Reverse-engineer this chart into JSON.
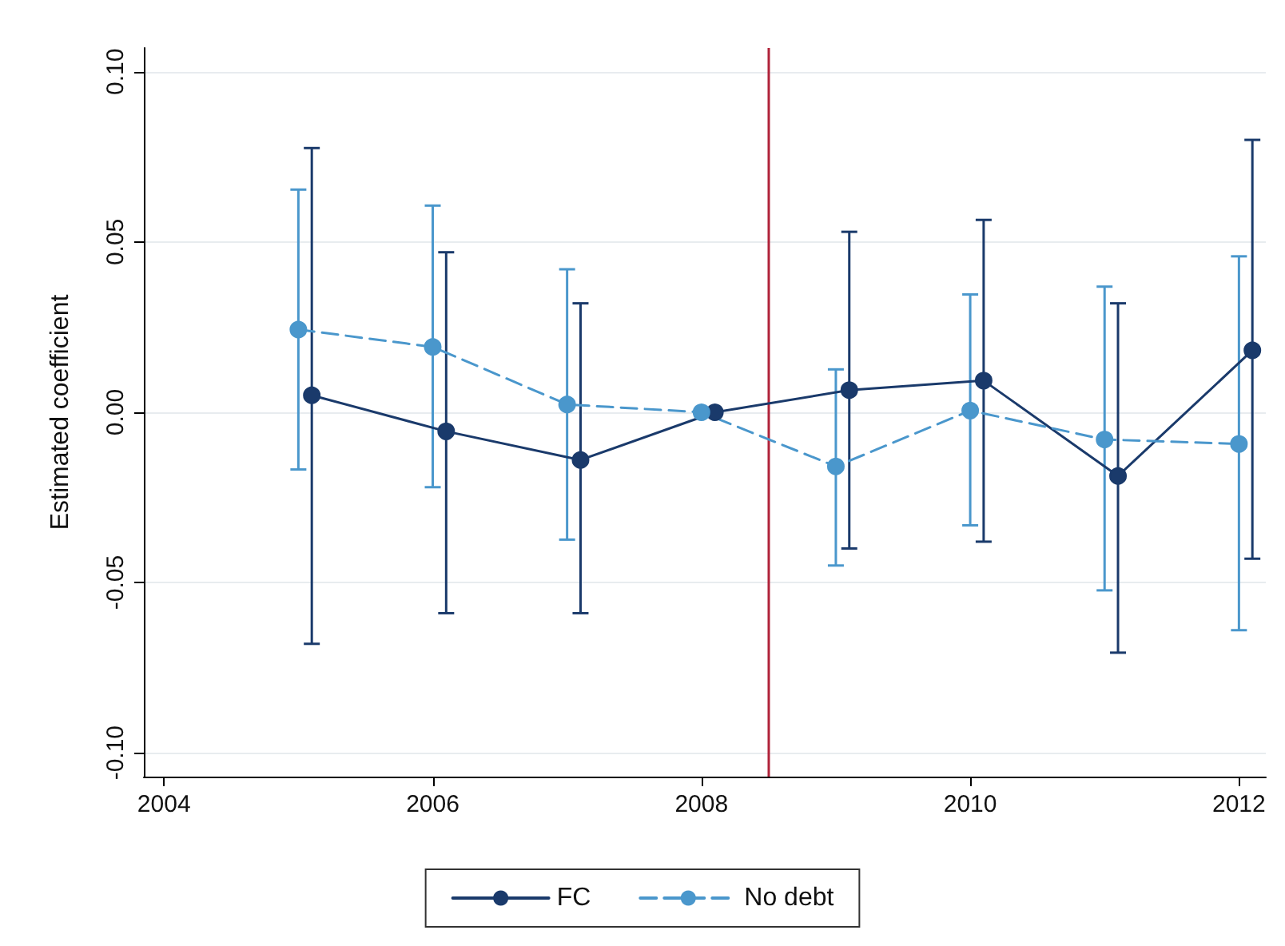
{
  "chart_data": {
    "type": "line",
    "ylabel": "Estimated coefficient",
    "xlim": [
      2003.85,
      2012.2
    ],
    "xticks": [
      2004,
      2006,
      2008,
      2010,
      2012
    ],
    "ylim": [
      -0.107,
      0.107
    ],
    "yticks": [
      {
        "value": -0.1,
        "label": "-0.10"
      },
      {
        "value": -0.05,
        "label": "-0.05"
      },
      {
        "value": 0,
        "label": "0.00"
      },
      {
        "value": 0.05,
        "label": "0.05"
      },
      {
        "value": 0.1,
        "label": "0.10"
      }
    ],
    "grid": "y",
    "legend": "bottom",
    "marker": "circle",
    "ref_lines": [
      {
        "axis": "x",
        "value": 2008.5,
        "color": "#b0233a"
      }
    ],
    "series": [
      {
        "name": "FC",
        "color": "#1a3a6b",
        "line_style": "solid",
        "x": [
          2005.1,
          2006.1,
          2007.1,
          2008.1,
          2009.1,
          2010.1,
          2011.1,
          2012.1
        ],
        "values": [
          0.005,
          -0.0056,
          -0.014,
          0,
          0.0065,
          0.0093,
          -0.0187,
          0.0182
        ],
        "errors": [
          [
            -0.068,
            0.0776
          ],
          [
            -0.059,
            0.047
          ],
          [
            -0.059,
            0.032
          ],
          null,
          [
            -0.04,
            0.053
          ],
          [
            -0.038,
            0.0565
          ],
          [
            -0.0706,
            0.032
          ],
          [
            -0.043,
            0.08
          ]
        ]
      },
      {
        "name": "No debt",
        "color": "#4a97cc",
        "line_style": "dashed",
        "x": [
          2005,
          2006,
          2007,
          2008,
          2009,
          2010,
          2011,
          2012
        ],
        "values": [
          0.0243,
          0.0192,
          0.0023,
          0,
          -0.0159,
          0.0005,
          -0.008,
          -0.0093
        ],
        "errors": [
          [
            -0.0168,
            0.0654
          ],
          [
            -0.022,
            0.0607
          ],
          [
            -0.0374,
            0.042
          ],
          null,
          [
            -0.045,
            0.0126
          ],
          [
            -0.0332,
            0.0346
          ],
          [
            -0.0523,
            0.0369
          ],
          [
            -0.064,
            0.0458
          ]
        ]
      }
    ]
  }
}
